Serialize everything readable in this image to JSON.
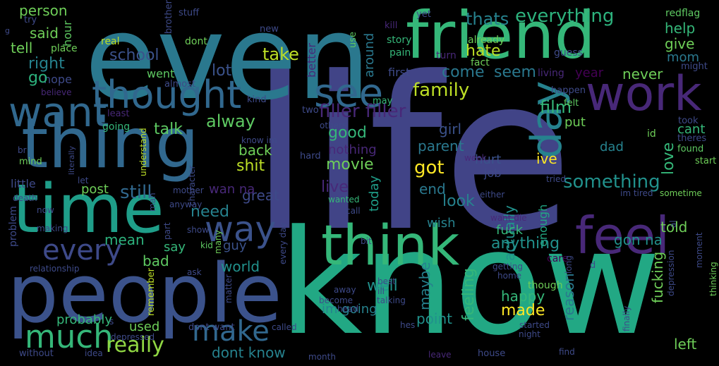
{
  "words": [
    {
      "text": "life",
      "color": "#414487"
    },
    {
      "text": "know",
      "color": "#22a884"
    },
    {
      "text": "even",
      "color": "#2a788e"
    },
    {
      "text": "people",
      "color": "#3b528b"
    },
    {
      "text": "friend",
      "color": "#35b779"
    },
    {
      "text": "thing",
      "color": "#31688e"
    },
    {
      "text": "time",
      "color": "#1f9e89"
    },
    {
      "text": "think",
      "color": "#35b779"
    },
    {
      "text": "work",
      "color": "#482878"
    },
    {
      "text": "feel",
      "color": "#482878"
    },
    {
      "text": "thought",
      "color": "#31688e"
    },
    {
      "text": "want",
      "color": "#31688e"
    },
    {
      "text": "see",
      "color": "#31688e"
    },
    {
      "text": "day",
      "color": "#26828e"
    },
    {
      "text": "way",
      "color": "#3b528b"
    },
    {
      "text": "every",
      "color": "#3e4a89"
    },
    {
      "text": "much",
      "color": "#35b779"
    },
    {
      "text": "make",
      "color": "#31688e"
    },
    {
      "text": "really",
      "color": "#90d743"
    },
    {
      "text": "thats",
      "color": "#26828e"
    },
    {
      "text": "everything",
      "color": "#2db27d"
    },
    {
      "text": "filler filler",
      "color": "#482878"
    },
    {
      "text": "family",
      "color": "#bddf26"
    },
    {
      "text": "something",
      "color": "#21918c"
    },
    {
      "text": "alway",
      "color": "#5ec962"
    },
    {
      "text": "talk",
      "color": "#5ec962"
    },
    {
      "text": "still",
      "color": "#31688e"
    },
    {
      "text": "school",
      "color": "#3b528b"
    },
    {
      "text": "person",
      "color": "#6ece58"
    },
    {
      "text": "said",
      "color": "#6ece58"
    },
    {
      "text": "tell",
      "color": "#6ece58"
    },
    {
      "text": "right",
      "color": "#26828e"
    },
    {
      "text": "hope",
      "color": "#3e4a89"
    },
    {
      "text": "go",
      "color": "#2db27d"
    },
    {
      "text": "take",
      "color": "#bddf26"
    },
    {
      "text": "lot",
      "color": "#3b528b"
    },
    {
      "text": "hate",
      "color": "#bddf26"
    },
    {
      "text": "come",
      "color": "#2a788e"
    },
    {
      "text": "seem",
      "color": "#2a788e"
    },
    {
      "text": "year",
      "color": "#440154"
    },
    {
      "text": "never",
      "color": "#6ece58"
    },
    {
      "text": "film",
      "color": "#35b779"
    },
    {
      "text": "help",
      "color": "#35b779"
    },
    {
      "text": "give",
      "color": "#6ece58"
    },
    {
      "text": "mom",
      "color": "#2a788e"
    },
    {
      "text": "good",
      "color": "#35b779"
    },
    {
      "text": "girl",
      "color": "#3b528b"
    },
    {
      "text": "parent",
      "color": "#2a788e"
    },
    {
      "text": "got",
      "color": "#fde725"
    },
    {
      "text": "love",
      "color": "#35b779"
    },
    {
      "text": "cant",
      "color": "#35b779"
    },
    {
      "text": "movie",
      "color": "#6ece58"
    },
    {
      "text": "back",
      "color": "#6ece58"
    },
    {
      "text": "shit",
      "color": "#bddf26"
    },
    {
      "text": "live",
      "color": "#482878"
    },
    {
      "text": "end",
      "color": "#2a788e"
    },
    {
      "text": "look",
      "color": "#26828e"
    },
    {
      "text": "need",
      "color": "#26828e"
    },
    {
      "text": "mean",
      "color": "#2db27d"
    },
    {
      "text": "say",
      "color": "#35b779"
    },
    {
      "text": "guy",
      "color": "#3b528b"
    },
    {
      "text": "world",
      "color": "#21918c"
    },
    {
      "text": "bad",
      "color": "#5ec962"
    },
    {
      "text": "post",
      "color": "#6ece58"
    },
    {
      "text": "told",
      "color": "#6ece58"
    },
    {
      "text": "actually",
      "color": "#21918c"
    },
    {
      "text": "anything",
      "color": "#21918c"
    },
    {
      "text": "feeling",
      "color": "#35b779"
    },
    {
      "text": "maybe",
      "color": "#26828e"
    },
    {
      "text": "well",
      "color": "#21918c"
    },
    {
      "text": "made",
      "color": "#fde725"
    },
    {
      "text": "happy",
      "color": "#35b779"
    },
    {
      "text": "fucking",
      "color": "#6ece58"
    },
    {
      "text": "point",
      "color": "#21918c"
    },
    {
      "text": "reason",
      "color": "#2a788e"
    },
    {
      "text": "left",
      "color": "#6ece58"
    },
    {
      "text": "probably",
      "color": "#35b779"
    },
    {
      "text": "used",
      "color": "#6ece58"
    },
    {
      "text": "dont know",
      "color": "#26828e"
    },
    {
      "text": "im going",
      "color": "#26828e"
    },
    {
      "text": "great",
      "color": "#3e4a89"
    },
    {
      "text": "fuck",
      "color": "#35b779"
    },
    {
      "text": "wish",
      "color": "#26828e"
    },
    {
      "text": "gon na",
      "color": "#21918c"
    },
    {
      "text": "wan na",
      "color": "#482878"
    },
    {
      "text": "nothing",
      "color": "#482878"
    },
    {
      "text": "today",
      "color": "#1f9e89"
    },
    {
      "text": "ive",
      "color": "#fde725"
    },
    {
      "text": "dad",
      "color": "#26828e"
    },
    {
      "text": "put",
      "color": "#6ece58"
    },
    {
      "text": "hurt",
      "color": "#3b528b"
    },
    {
      "text": "job",
      "color": "#3e4a89"
    },
    {
      "text": "around",
      "color": "#2a788e"
    },
    {
      "text": "first",
      "color": "#3e4a89"
    },
    {
      "text": "better",
      "color": "#482878"
    },
    {
      "text": "went",
      "color": "#5ec962"
    },
    {
      "text": "going",
      "color": "#35b779"
    },
    {
      "text": "little",
      "color": "#3e4a89"
    },
    {
      "text": "care",
      "color": "#440154"
    },
    {
      "text": "enough",
      "color": "#22a884"
    },
    {
      "text": "story",
      "color": "#35b779"
    },
    {
      "text": "pain",
      "color": "#35b779"
    },
    {
      "text": "already",
      "color": "#6ece58"
    },
    {
      "text": "guess",
      "color": "#3e4a89"
    },
    {
      "text": "redflag",
      "color": "#5ec962"
    },
    {
      "text": "real",
      "color": "#bddf26"
    },
    {
      "text": "dont",
      "color": "#6ece58"
    },
    {
      "text": "brother",
      "color": "#3e4a89"
    },
    {
      "text": "stuff",
      "color": "#3e4a89"
    },
    {
      "text": "yet",
      "color": "#3e4a89"
    },
    {
      "text": "kill",
      "color": "#482878"
    },
    {
      "text": "new",
      "color": "#3e4a89"
    },
    {
      "text": "try",
      "color": "#3e4a89"
    },
    {
      "text": "place",
      "color": "#6ece58"
    },
    {
      "text": "hour",
      "color": "#5ec962"
    },
    {
      "text": "use",
      "color": "#5ec962"
    },
    {
      "text": "turn",
      "color": "#482878"
    },
    {
      "text": "fact",
      "color": "#6ece58"
    },
    {
      "text": "might",
      "color": "#3e4a89"
    },
    {
      "text": "living",
      "color": "#482878"
    },
    {
      "text": "almost",
      "color": "#3e4a89"
    },
    {
      "text": "believe",
      "color": "#482878"
    },
    {
      "text": "kind",
      "color": "#3e4a89"
    },
    {
      "text": "may",
      "color": "#35b779"
    },
    {
      "text": "happen",
      "color": "#3e4a89"
    },
    {
      "text": "felt",
      "color": "#5ec962"
    },
    {
      "text": "least",
      "color": "#482878"
    },
    {
      "text": "two",
      "color": "#3e4a89"
    },
    {
      "text": "took",
      "color": "#3e4a89"
    },
    {
      "text": "id",
      "color": "#6ece58"
    },
    {
      "text": "theres",
      "color": "#3e4a89"
    },
    {
      "text": "start",
      "color": "#6ece58"
    },
    {
      "text": "found",
      "color": "#5ec962"
    },
    {
      "text": "others",
      "color": "#3e4a89"
    },
    {
      "text": "know im",
      "color": "#3e4a89"
    },
    {
      "text": "hard",
      "color": "#3e4a89"
    },
    {
      "text": "week",
      "color": "#482878"
    },
    {
      "text": "understand",
      "color": "#bddf26"
    },
    {
      "text": "character",
      "color": "#3e4a89"
    },
    {
      "text": "mother",
      "color": "#3e4a89"
    },
    {
      "text": "mind",
      "color": "#6ece58"
    },
    {
      "text": "br",
      "color": "#3e4a89"
    },
    {
      "text": "let",
      "color": "#3e4a89"
    },
    {
      "text": "literally",
      "color": "#3e4a89"
    },
    {
      "text": "death",
      "color": "#3e4a89"
    },
    {
      "text": "tried",
      "color": "#3e4a89"
    },
    {
      "text": "im tired",
      "color": "#3e4a89"
    },
    {
      "text": "sometime",
      "color": "#6ece58"
    },
    {
      "text": "either",
      "color": "#3e4a89"
    },
    {
      "text": "wanted",
      "color": "#35b779"
    },
    {
      "text": "call",
      "color": "#3e4a89"
    },
    {
      "text": "want die",
      "color": "#482878"
    },
    {
      "text": "al",
      "color": "#3e4a89"
    },
    {
      "text": "anyway",
      "color": "#3e4a89"
    },
    {
      "text": "now",
      "color": "#3e4a89"
    },
    {
      "text": "part",
      "color": "#3e4a89"
    },
    {
      "text": "man",
      "color": "#3e4a89"
    },
    {
      "text": "show",
      "color": "#3e4a89"
    },
    {
      "text": "making",
      "color": "#3e4a89"
    },
    {
      "text": "kid",
      "color": "#5ec962"
    },
    {
      "text": "many",
      "color": "#6ece58"
    },
    {
      "text": "bit",
      "color": "#3e4a89"
    },
    {
      "text": "home",
      "color": "#3e4a89"
    },
    {
      "text": "problem",
      "color": "#3e4a89"
    },
    {
      "text": "relationship",
      "color": "#3e4a89"
    },
    {
      "text": "every day",
      "color": "#3e4a89"
    },
    {
      "text": "getting",
      "color": "#3e4a89"
    },
    {
      "text": "moment",
      "color": "#3e4a89"
    },
    {
      "text": "long",
      "color": "#3e4a89"
    },
    {
      "text": "d",
      "color": "#3e4a89"
    },
    {
      "text": "ask",
      "color": "#3e4a89"
    },
    {
      "text": "remember",
      "color": "#bddf26"
    },
    {
      "text": "matter",
      "color": "#3e4a89"
    },
    {
      "text": "away",
      "color": "#3e4a89"
    },
    {
      "text": "best",
      "color": "#3e4a89"
    },
    {
      "text": "ill",
      "color": "#3e4a89"
    },
    {
      "text": "though",
      "color": "#6ece58"
    },
    {
      "text": "thinking",
      "color": "#6ece58"
    },
    {
      "text": "become",
      "color": "#3e4a89"
    },
    {
      "text": "dont want",
      "color": "#3e4a89"
    },
    {
      "text": "called",
      "color": "#3e4a89"
    },
    {
      "text": "talking",
      "color": "#3e4a89"
    },
    {
      "text": "head",
      "color": "#3e4a89"
    },
    {
      "text": "hes",
      "color": "#3e4a89"
    },
    {
      "text": "started",
      "color": "#3e4a89"
    },
    {
      "text": "night",
      "color": "#3e4a89"
    },
    {
      "text": "depression",
      "color": "#3e4a89"
    },
    {
      "text": "finally",
      "color": "#3e4a89"
    },
    {
      "text": "depressed",
      "color": "#3e4a89"
    },
    {
      "text": "s",
      "color": "#3e4a89"
    },
    {
      "text": "without",
      "color": "#3e4a89"
    },
    {
      "text": "idea",
      "color": "#3e4a89"
    },
    {
      "text": "month",
      "color": "#3e4a89"
    },
    {
      "text": "leave",
      "color": "#482878"
    },
    {
      "text": "house",
      "color": "#3e4a89"
    },
    {
      "text": "find",
      "color": "#3e4a89"
    },
    {
      "text": "g",
      "color": "#3e4a89"
    }
  ]
}
